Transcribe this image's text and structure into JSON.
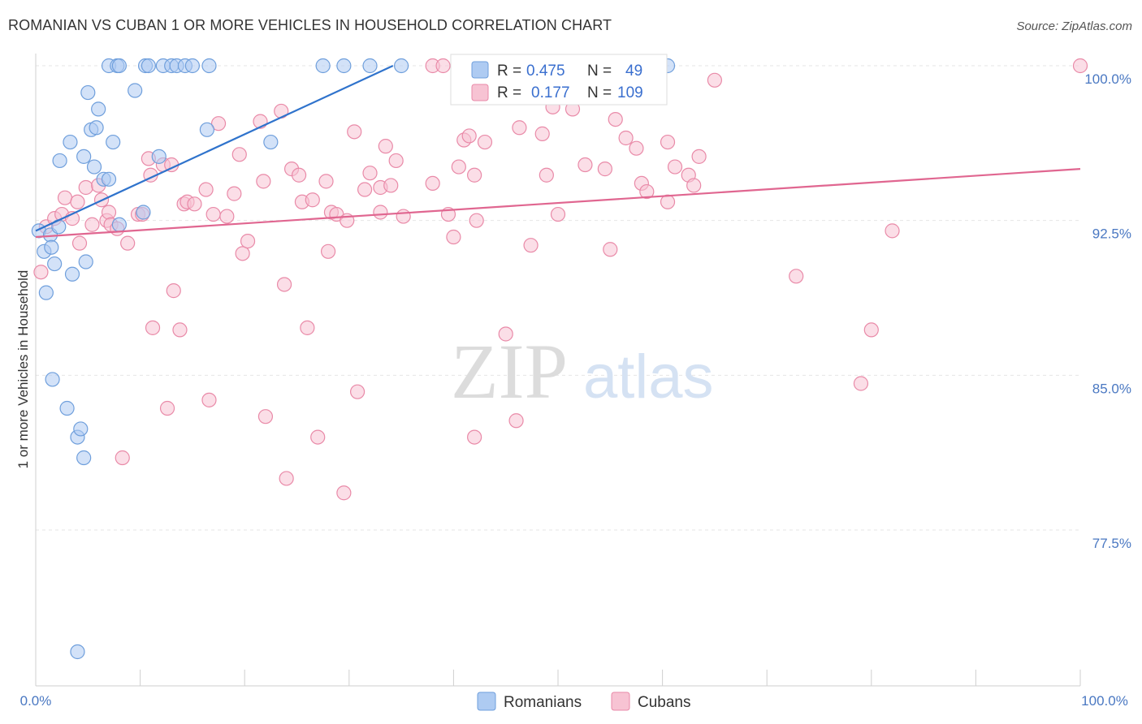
{
  "title": "ROMANIAN VS CUBAN 1 OR MORE VEHICLES IN HOUSEHOLD CORRELATION CHART",
  "source": "Source: ZipAtlas.com",
  "watermark": {
    "zip": "ZIP",
    "atlas": "atlas"
  },
  "colors": {
    "romanian_fill": "#aecbf2",
    "romanian_stroke": "#6f9fdc",
    "romanian_line": "#2f73cc",
    "cuban_fill": "#f7c3d3",
    "cuban_stroke": "#e98aa8",
    "cuban_line": "#e06690",
    "axis_text": "#4a78c2"
  },
  "legend": {
    "rows": [
      {
        "r_label": "R =",
        "r_value": "0.475",
        "n_label": "N =",
        "n_value": "49"
      },
      {
        "r_label": "R =",
        "r_value": "0.177",
        "n_label": "N =",
        "n_value": "109"
      }
    ]
  },
  "chart_data": {
    "type": "scatter",
    "title": "ROMANIAN VS CUBAN 1 OR MORE VEHICLES IN HOUSEHOLD CORRELATION CHART",
    "xlabel": "",
    "ylabel": "1 or more Vehicles in Household",
    "xlim": [
      0,
      100
    ],
    "ylim": [
      70.5,
      101.5
    ],
    "x_tick_labels": [
      "0.0%",
      "100.0%"
    ],
    "y_ticks": [
      77.5,
      85.0,
      92.5,
      100.0
    ],
    "y_tick_labels": [
      "77.5%",
      "85.0%",
      "92.5%",
      "100.0%"
    ],
    "grid": true,
    "legend_position": "top-center",
    "series": [
      {
        "name": "Romanians",
        "r": 0.475,
        "n": 49,
        "trend": {
          "x0": 0,
          "y0": 92.0,
          "x1": 34.2,
          "y1": 100.0
        },
        "points": [
          [
            0.3,
            92.0
          ],
          [
            0.8,
            91.0
          ],
          [
            1.0,
            89.0
          ],
          [
            1.4,
            91.8
          ],
          [
            1.5,
            91.2
          ],
          [
            1.8,
            90.4
          ],
          [
            2.2,
            92.2
          ],
          [
            2.3,
            95.4
          ],
          [
            3.0,
            83.4
          ],
          [
            3.3,
            96.3
          ],
          [
            3.5,
            89.9
          ],
          [
            4.0,
            82.0
          ],
          [
            4.3,
            82.4
          ],
          [
            4.6,
            81.0
          ],
          [
            4.6,
            95.6
          ],
          [
            4.8,
            90.5
          ],
          [
            5.0,
            98.7
          ],
          [
            5.3,
            96.9
          ],
          [
            5.6,
            95.1
          ],
          [
            5.8,
            97.0
          ],
          [
            6.0,
            97.9
          ],
          [
            6.5,
            94.5
          ],
          [
            7.0,
            94.5
          ],
          [
            7.4,
            96.3
          ],
          [
            8.0,
            92.3
          ],
          [
            7.0,
            100.0
          ],
          [
            7.8,
            100.0
          ],
          [
            8.0,
            100.0
          ],
          [
            9.5,
            98.8
          ],
          [
            10.3,
            92.9
          ],
          [
            10.5,
            100.0
          ],
          [
            10.8,
            100.0
          ],
          [
            11.8,
            95.6
          ],
          [
            12.2,
            100.0
          ],
          [
            13.0,
            100.0
          ],
          [
            13.5,
            100.0
          ],
          [
            14.3,
            100.0
          ],
          [
            15.0,
            100.0
          ],
          [
            16.4,
            96.9
          ],
          [
            16.6,
            100.0
          ],
          [
            22.5,
            96.3
          ],
          [
            27.5,
            100.0
          ],
          [
            29.5,
            100.0
          ],
          [
            32.0,
            100.0
          ],
          [
            35.0,
            100.0
          ],
          [
            1.6,
            84.8
          ],
          [
            4.0,
            71.6
          ],
          [
            54.0,
            100.0
          ],
          [
            60.5,
            100.0
          ]
        ]
      },
      {
        "name": "Cubans",
        "r": 0.177,
        "n": 109,
        "trend": {
          "x0": 0,
          "y0": 91.7,
          "x1": 100,
          "y1": 95.0
        },
        "points": [
          [
            0.5,
            90.0
          ],
          [
            1.0,
            92.2
          ],
          [
            1.8,
            92.6
          ],
          [
            2.5,
            92.8
          ],
          [
            2.8,
            93.6
          ],
          [
            3.5,
            92.6
          ],
          [
            4.0,
            93.4
          ],
          [
            4.2,
            91.4
          ],
          [
            4.8,
            94.1
          ],
          [
            5.4,
            92.3
          ],
          [
            6.0,
            94.2
          ],
          [
            6.3,
            93.5
          ],
          [
            6.8,
            92.5
          ],
          [
            7.0,
            92.9
          ],
          [
            7.2,
            92.3
          ],
          [
            7.8,
            92.1
          ],
          [
            8.3,
            81.0
          ],
          [
            8.8,
            91.4
          ],
          [
            9.8,
            92.8
          ],
          [
            10.2,
            92.8
          ],
          [
            10.8,
            95.5
          ],
          [
            11.0,
            94.7
          ],
          [
            11.2,
            87.3
          ],
          [
            12.2,
            95.2
          ],
          [
            12.6,
            83.4
          ],
          [
            13.0,
            95.2
          ],
          [
            13.2,
            89.1
          ],
          [
            13.8,
            87.2
          ],
          [
            14.2,
            93.3
          ],
          [
            14.5,
            93.4
          ],
          [
            15.2,
            93.3
          ],
          [
            16.3,
            94.0
          ],
          [
            16.6,
            83.8
          ],
          [
            17.0,
            92.8
          ],
          [
            17.5,
            97.2
          ],
          [
            18.3,
            92.7
          ],
          [
            19.0,
            93.8
          ],
          [
            19.5,
            95.7
          ],
          [
            19.8,
            90.9
          ],
          [
            20.3,
            91.5
          ],
          [
            21.5,
            97.3
          ],
          [
            21.8,
            94.4
          ],
          [
            22.0,
            83.0
          ],
          [
            23.5,
            97.8
          ],
          [
            23.8,
            89.4
          ],
          [
            24.0,
            80.0
          ],
          [
            24.5,
            95.0
          ],
          [
            25.2,
            94.7
          ],
          [
            25.5,
            93.4
          ],
          [
            26.0,
            87.3
          ],
          [
            26.5,
            93.5
          ],
          [
            27.0,
            82.0
          ],
          [
            27.8,
            94.4
          ],
          [
            28.0,
            91.0
          ],
          [
            28.3,
            92.9
          ],
          [
            28.8,
            92.8
          ],
          [
            29.5,
            79.3
          ],
          [
            29.8,
            92.5
          ],
          [
            30.5,
            96.8
          ],
          [
            30.8,
            84.2
          ],
          [
            31.5,
            94.0
          ],
          [
            32.0,
            94.8
          ],
          [
            33.0,
            92.9
          ],
          [
            33.0,
            94.1
          ],
          [
            33.5,
            96.1
          ],
          [
            34.0,
            94.2
          ],
          [
            34.5,
            95.4
          ],
          [
            35.2,
            92.7
          ],
          [
            38.0,
            94.3
          ],
          [
            39.5,
            92.8
          ],
          [
            40.0,
            91.7
          ],
          [
            40.5,
            95.1
          ],
          [
            41.0,
            96.4
          ],
          [
            41.5,
            96.6
          ],
          [
            42.0,
            94.7
          ],
          [
            42.2,
            92.5
          ],
          [
            43.0,
            96.3
          ],
          [
            45.0,
            87.0
          ],
          [
            46.0,
            82.8
          ],
          [
            46.3,
            97.0
          ],
          [
            47.4,
            91.3
          ],
          [
            48.5,
            96.7
          ],
          [
            48.9,
            94.7
          ],
          [
            49.5,
            98.0
          ],
          [
            50.0,
            92.8
          ],
          [
            51.4,
            97.9
          ],
          [
            52.6,
            95.2
          ],
          [
            54.5,
            95.0
          ],
          [
            55.0,
            91.1
          ],
          [
            55.5,
            97.4
          ],
          [
            56.5,
            96.5
          ],
          [
            57.5,
            96.0
          ],
          [
            58.0,
            94.3
          ],
          [
            58.5,
            93.9
          ],
          [
            60.5,
            93.4
          ],
          [
            60.5,
            96.3
          ],
          [
            61.2,
            95.1
          ],
          [
            62.5,
            94.7
          ],
          [
            63.0,
            94.2
          ],
          [
            63.5,
            95.6
          ],
          [
            65.0,
            99.3
          ],
          [
            72.8,
            89.8
          ],
          [
            79.0,
            84.6
          ],
          [
            80.0,
            87.2
          ],
          [
            82.0,
            92.0
          ],
          [
            100.0,
            100.0
          ],
          [
            42.0,
            82.0
          ],
          [
            38.0,
            100.0
          ],
          [
            39.0,
            100.0
          ]
        ]
      }
    ]
  },
  "bottom_legend": [
    {
      "label": "Romanians"
    },
    {
      "label": "Cubans"
    }
  ]
}
